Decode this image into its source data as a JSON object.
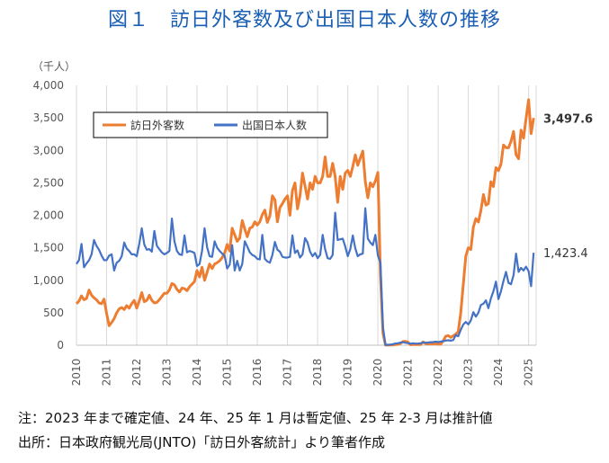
{
  "title": "図１　訪日外客数及び出国日本人数の推移",
  "notes": {
    "line1": "注：2023 年まで確定値、24 年、25 年 1 月は暫定値、25 年 2-3 月は推計値",
    "line2": "出所：日本政府観光局(JNTO)「訪日外客統計」より筆者作成"
  },
  "colors": {
    "visitors": "#ed7d31",
    "outbound": "#4472c4",
    "title": "#1a5fb4",
    "grid": "#d9d9d9"
  },
  "chart_data": {
    "type": "line",
    "unit_label": "（千人）",
    "ylim": [
      0,
      4000
    ],
    "yticks": [
      "0",
      "500",
      "1,000",
      "1,500",
      "2,000",
      "2,500",
      "3,000",
      "3,500",
      "4,000"
    ],
    "xticks": [
      "2010",
      "2011",
      "2012",
      "2013",
      "2014",
      "2015",
      "2016",
      "2017",
      "2018",
      "2019",
      "2020",
      "2021",
      "2022",
      "2023",
      "2024",
      "2025"
    ],
    "x_start": "2010-01",
    "frequency": "monthly",
    "grid": "vertical-yearly",
    "legend_position": "top-left",
    "series": [
      {
        "name": "訪日外客数",
        "end_label": "3,497.6",
        "values": [
          640,
          680,
          760,
          700,
          720,
          850,
          770,
          730,
          700,
          650,
          640,
          710,
          490,
          300,
          350,
          410,
          500,
          560,
          580,
          550,
          610,
          570,
          640,
          690,
          570,
          680,
          810,
          670,
          690,
          770,
          690,
          650,
          660,
          700,
          750,
          800,
          800,
          850,
          950,
          930,
          860,
          820,
          880,
          870,
          840,
          900,
          940,
          980,
          1150,
          1050,
          1200,
          1000,
          1120,
          1250,
          1180,
          1250,
          1270,
          1300,
          1350,
          1420,
          1550,
          1450,
          1800,
          1700,
          1600,
          1650,
          1920,
          1790,
          1670,
          1800,
          1820,
          1900,
          1850,
          1900,
          2010,
          2080,
          1890,
          1990,
          2300,
          2240,
          1900,
          2120,
          2180,
          2250,
          2300,
          2000,
          2380,
          2500,
          2100,
          2300,
          2650,
          2450,
          2250,
          2500,
          2400,
          2600,
          2500,
          2500,
          2600,
          2900,
          2600,
          2600,
          2800,
          2600,
          2200,
          2600,
          2400,
          2650,
          2690,
          2600,
          2750,
          2930,
          2770,
          2880,
          2990,
          2520,
          2270,
          2500,
          2440,
          2530,
          2660,
          1090,
          190,
          3,
          2,
          3,
          4,
          9,
          14,
          28,
          57,
          59,
          46,
          7,
          12,
          11,
          10,
          10,
          51,
          26,
          18,
          23,
          21,
          24,
          17,
          17,
          66,
          139,
          148,
          121,
          145,
          170,
          207,
          499,
          934,
          1370,
          1500,
          1474,
          1817,
          1949,
          1898,
          2073,
          2320,
          2157,
          2180,
          2517,
          2441,
          2734,
          2688,
          2788,
          3082,
          3042,
          3040,
          3140,
          3292,
          2932,
          2872,
          3312,
          3188,
          3489,
          3780,
          3258,
          3497.6
        ]
      },
      {
        "name": "出国日本人数",
        "end_label": "1,423.4",
        "values": [
          1250,
          1310,
          1560,
          1200,
          1260,
          1310,
          1400,
          1620,
          1530,
          1470,
          1380,
          1310,
          1310,
          1380,
          1400,
          1150,
          1270,
          1300,
          1370,
          1580,
          1490,
          1450,
          1400,
          1400,
          1370,
          1560,
          1800,
          1550,
          1470,
          1480,
          1440,
          1760,
          1530,
          1480,
          1430,
          1400,
          1420,
          1450,
          1950,
          1600,
          1450,
          1400,
          1390,
          1690,
          1430,
          1450,
          1440,
          1420,
          1220,
          1250,
          1450,
          1800,
          1510,
          1370,
          1360,
          1600,
          1500,
          1450,
          1410,
          1380,
          1180,
          1240,
          1540,
          1150,
          1300,
          1150,
          1250,
          1600,
          1520,
          1430,
          1390,
          1370,
          1330,
          1320,
          1700,
          1330,
          1290,
          1270,
          1390,
          1590,
          1470,
          1440,
          1360,
          1350,
          1350,
          1360,
          1690,
          1420,
          1460,
          1350,
          1400,
          1650,
          1580,
          1440,
          1370,
          1420,
          1340,
          1390,
          1700,
          1480,
          1340,
          1330,
          1390,
          2040,
          1620,
          1630,
          1640,
          1520,
          1370,
          1480,
          1690,
          1490,
          1370,
          1400,
          1410,
          2110,
          1640,
          1580,
          1540,
          1700,
          1380,
          1270,
          280,
          4,
          7,
          10,
          16,
          28,
          31,
          40,
          47,
          37,
          32,
          24,
          31,
          25,
          26,
          31,
          41,
          39,
          42,
          47,
          47,
          55,
          48,
          56,
          62,
          72,
          76,
          70,
          80,
          157,
          139,
          236,
          319,
          358,
          320,
          380,
          510,
          440,
          500,
          620,
          640,
          690,
          570,
          720,
          830,
          980,
          710,
          830,
          990,
          1130,
          960,
          940,
          1080,
          1410,
          1130,
          1190,
          1150,
          1210,
          1140,
          910,
          1423.4
        ]
      }
    ]
  }
}
